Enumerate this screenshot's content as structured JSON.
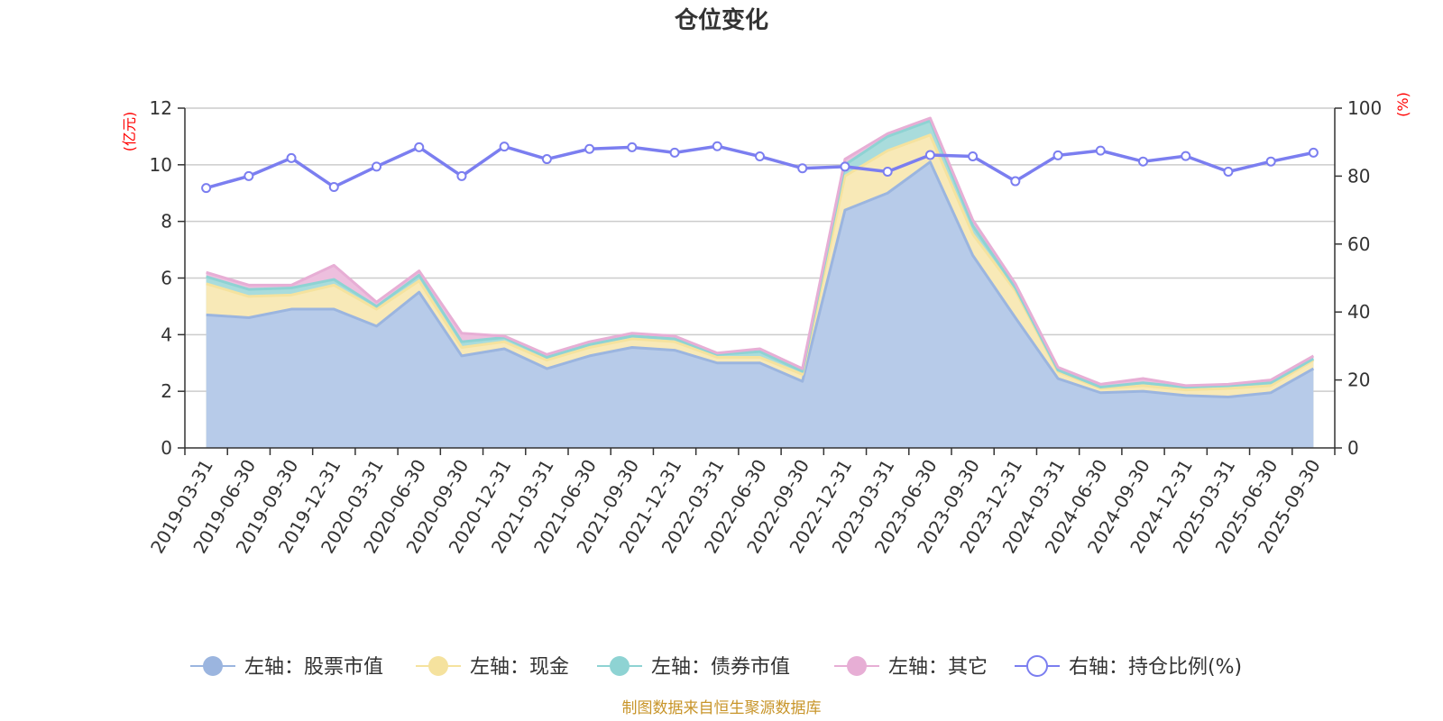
{
  "chart_data": {
    "type": "area",
    "title": "仓位变化",
    "left_axis_unit": "(亿元)",
    "right_axis_unit": "(%)",
    "left_ylim": [
      0,
      12
    ],
    "left_ticks": [
      0,
      2,
      4,
      6,
      8,
      10,
      12
    ],
    "right_ylim": [
      0,
      100
    ],
    "right_ticks": [
      0,
      20,
      40,
      60,
      80,
      100
    ],
    "categories": [
      "2019-03-31",
      "2019-06-30",
      "2019-09-30",
      "2019-12-31",
      "2020-03-31",
      "2020-06-30",
      "2020-09-30",
      "2020-12-31",
      "2021-03-31",
      "2021-06-30",
      "2021-09-30",
      "2021-12-31",
      "2022-03-31",
      "2022-06-30",
      "2022-09-30",
      "2022-12-31",
      "2023-03-31",
      "2023-06-30",
      "2023-09-30",
      "2023-12-31",
      "2024-03-31",
      "2024-06-30",
      "2024-09-30",
      "2024-12-31",
      "2025-03-31",
      "2025-06-30",
      "2025-09-30"
    ],
    "stacked_series": [
      {
        "name": "左轴：股票市值",
        "color": "#9bb5df",
        "fill": "#b7cbe9",
        "values": [
          4.7,
          4.6,
          4.9,
          4.9,
          4.3,
          5.5,
          3.25,
          3.5,
          2.8,
          3.25,
          3.55,
          3.45,
          3.0,
          3.0,
          2.35,
          8.4,
          9.0,
          10.1,
          6.8,
          4.6,
          2.45,
          1.95,
          2.0,
          1.85,
          1.8,
          1.95,
          2.8
        ]
      },
      {
        "name": "左轴：现金",
        "color": "#f5e29e",
        "fill": "#f8e9b7",
        "values": [
          1.1,
          0.75,
          0.5,
          0.85,
          0.6,
          0.4,
          0.3,
          0.25,
          0.3,
          0.3,
          0.3,
          0.3,
          0.2,
          0.2,
          0.25,
          1.2,
          1.5,
          0.95,
          0.75,
          0.95,
          0.25,
          0.15,
          0.2,
          0.2,
          0.3,
          0.25,
          0.3
        ]
      },
      {
        "name": "左轴：债券市值",
        "color": "#8ed3d3",
        "fill": "#a9dcdc",
        "values": [
          0.25,
          0.25,
          0.25,
          0.2,
          0.1,
          0.2,
          0.2,
          0.15,
          0.1,
          0.1,
          0.1,
          0.1,
          0.1,
          0.2,
          0.1,
          0.4,
          0.5,
          0.5,
          0.3,
          0.1,
          0.05,
          0.05,
          0.1,
          0.1,
          0.1,
          0.1,
          0.05
        ]
      },
      {
        "name": "左轴：其它",
        "color": "#e7aed5",
        "fill": "#edbfde",
        "values": [
          0.15,
          0.15,
          0.1,
          0.5,
          0.15,
          0.15,
          0.3,
          0.05,
          0.1,
          0.1,
          0.1,
          0.1,
          0.05,
          0.1,
          0.1,
          0.2,
          0.1,
          0.1,
          0.2,
          0.15,
          0.1,
          0.1,
          0.15,
          0.05,
          0.05,
          0.1,
          0.1
        ]
      }
    ],
    "line_series": {
      "name": "右轴：持仓比例(%)",
      "axis": "right",
      "color": "#7b7ef0",
      "values": [
        76.5,
        80.0,
        85.3,
        76.8,
        82.8,
        88.5,
        80.0,
        88.7,
        85.0,
        88.0,
        88.5,
        86.9,
        88.8,
        85.8,
        82.3,
        82.8,
        81.3,
        86.2,
        85.8,
        78.5,
        86.1,
        87.5,
        84.3,
        85.9,
        81.3,
        84.3,
        86.9
      ]
    },
    "legend": [
      "左轴：股票市值",
      "左轴：现金",
      "左轴：债券市值",
      "左轴：其它",
      "右轴：持仓比例(%)"
    ],
    "legend_position": "bottom",
    "grid": true
  },
  "source_note": "制图数据来自恒生聚源数据库"
}
